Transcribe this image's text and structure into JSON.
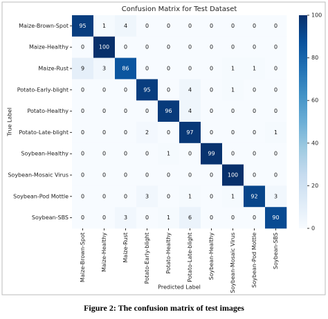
{
  "chart_data": {
    "type": "heatmap",
    "title": "Confusion Matrix for Test Dataset",
    "xlabel": "Predicted Label",
    "ylabel": "True Label",
    "caption": "Figure 2: The confusion matrix of test images",
    "categories": [
      "Maize-Brown-Spot",
      "Maize-Healthy",
      "Maize-Rust",
      "Potato-Early-blight",
      "Potato-Healthy",
      "Potato-Late-blight",
      "Soybean-Healthy",
      "Soybean-Mosaic Virus",
      "Soybean-Pod Mottle",
      "Soybean-SBS"
    ],
    "matrix": [
      [
        95,
        1,
        4,
        0,
        0,
        0,
        0,
        0,
        0,
        0
      ],
      [
        0,
        100,
        0,
        0,
        0,
        0,
        0,
        0,
        0,
        0
      ],
      [
        9,
        3,
        86,
        0,
        0,
        0,
        0,
        1,
        1,
        0
      ],
      [
        0,
        0,
        0,
        95,
        0,
        4,
        0,
        1,
        0,
        0
      ],
      [
        0,
        0,
        0,
        0,
        96,
        4,
        0,
        0,
        0,
        0
      ],
      [
        0,
        0,
        0,
        2,
        0,
        97,
        0,
        0,
        0,
        1
      ],
      [
        0,
        0,
        0,
        0,
        1,
        0,
        99,
        0,
        0,
        0
      ],
      [
        0,
        0,
        0,
        0,
        0,
        0,
        0,
        100,
        0,
        0
      ],
      [
        0,
        0,
        0,
        3,
        0,
        1,
        0,
        1,
        92,
        3
      ],
      [
        0,
        0,
        3,
        0,
        1,
        6,
        0,
        0,
        0,
        90
      ]
    ],
    "colormap": "Blues",
    "clim": [
      0,
      100
    ],
    "cticks": [
      0,
      20,
      40,
      60,
      80,
      100
    ]
  }
}
